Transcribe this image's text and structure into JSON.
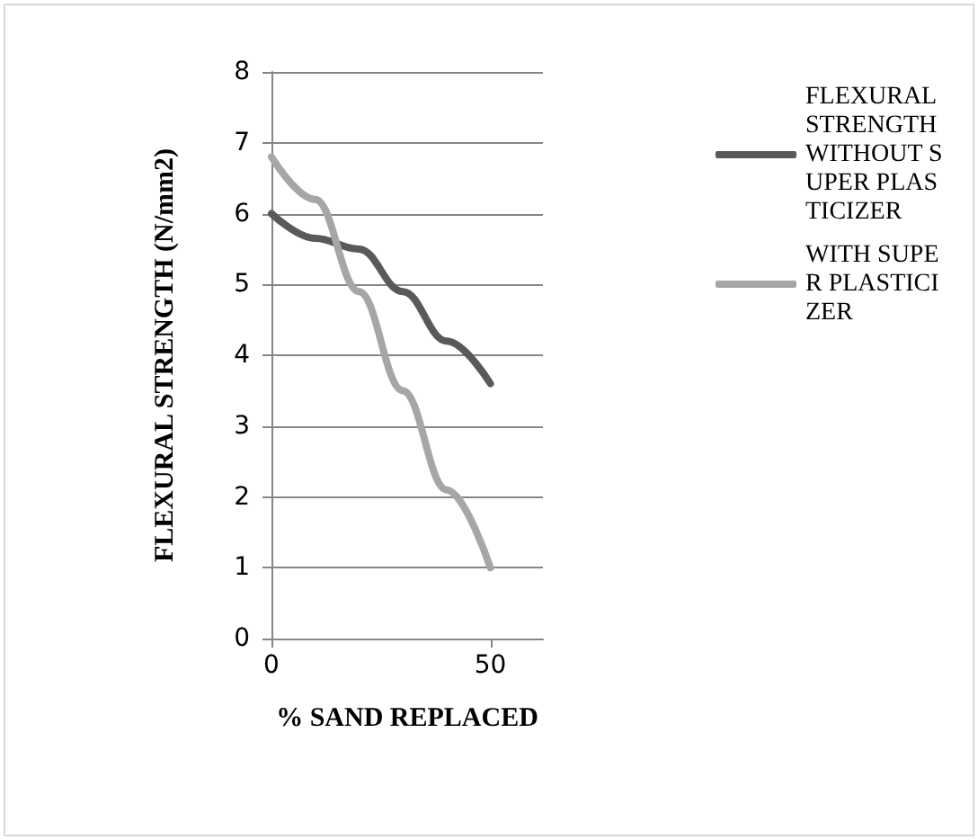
{
  "chart_data": {
    "type": "line",
    "xlabel": "% SAND REPLACED",
    "ylabel": "FLEXURAL STRENGTH (N/mm2)",
    "x": [
      0,
      10,
      20,
      30,
      40,
      50
    ],
    "series": [
      {
        "name": "FLEXURAL STRENGTH WITHOUT SUPER PLASTICIZER",
        "color": "#595959",
        "values": [
          6.0,
          5.65,
          5.5,
          4.9,
          4.2,
          3.6
        ]
      },
      {
        "name": "WITH SUPER PLASTICIZER",
        "color": "#a6a6a6",
        "values": [
          6.8,
          6.2,
          4.9,
          3.5,
          2.1,
          1.0
        ]
      }
    ],
    "xlim": [
      0,
      62
    ],
    "xticks": [
      0,
      50
    ],
    "ylim": [
      0,
      8
    ],
    "yticks": [
      0,
      1,
      2,
      3,
      4,
      5,
      6,
      7,
      8
    ],
    "grid": "y",
    "legend": "right",
    "marker": "none"
  }
}
